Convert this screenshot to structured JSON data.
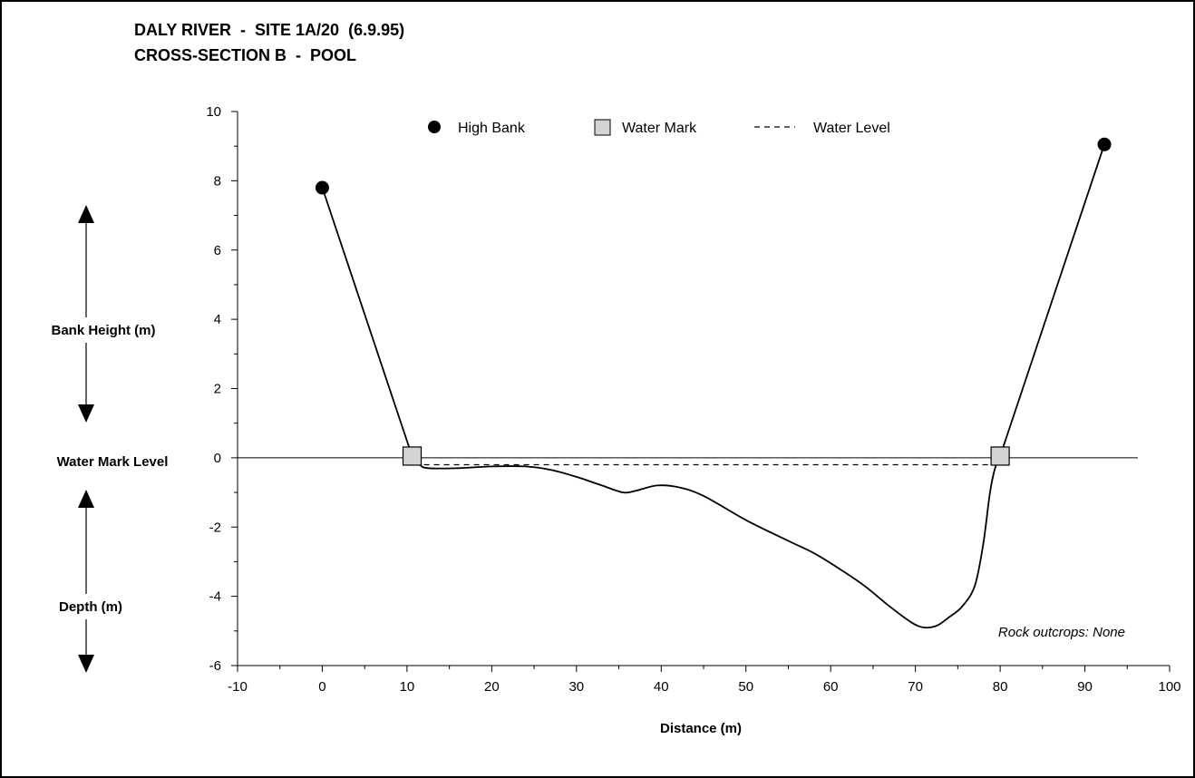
{
  "chart_data": {
    "type": "line",
    "title_line1": "DALY RIVER  -  SITE 1A/20  (6.9.95)",
    "title_line2": "CROSS-SECTION B  -  POOL",
    "xlabel": "Distance (m)",
    "xlim": [
      -10,
      100
    ],
    "ylim": [
      -6,
      10
    ],
    "x_ticks": [
      -10,
      0,
      10,
      20,
      30,
      40,
      50,
      60,
      70,
      80,
      90,
      100
    ],
    "y_ticks": [
      10,
      8,
      6,
      4,
      2,
      0,
      -2,
      -4,
      -6
    ],
    "side_labels": {
      "bank_height": "Bank Height (m)",
      "water_mark_level": "Water Mark Level",
      "depth": "Depth (m)"
    },
    "legend": {
      "high_bank": "High Bank",
      "water_mark": "Water Mark",
      "water_level": "Water Level"
    },
    "annotation": "Rock outcrops: None",
    "colors": {
      "line": "#000000",
      "marker_fill": "#d4d4d4",
      "high_bank_fill": "#000000"
    },
    "series": [
      {
        "name": "High Bank",
        "marker": "circle",
        "points": [
          [
            0,
            7.8
          ],
          [
            92.3,
            9.05
          ]
        ]
      },
      {
        "name": "Water Mark",
        "marker": "square",
        "points": [
          [
            10.6,
            0.05
          ],
          [
            80,
            0.05
          ]
        ]
      },
      {
        "name": "Water Level",
        "style": "dashed",
        "points": [
          [
            12,
            -0.2
          ],
          [
            79,
            -0.2
          ]
        ]
      },
      {
        "name": "profile",
        "style": "solid",
        "points": [
          [
            0,
            7.8
          ],
          [
            10.6,
            0.05
          ],
          [
            11.5,
            -0.2
          ],
          [
            12.5,
            -0.3
          ],
          [
            16,
            -0.3
          ],
          [
            20,
            -0.25
          ],
          [
            24,
            -0.25
          ],
          [
            27,
            -0.35
          ],
          [
            30,
            -0.55
          ],
          [
            33,
            -0.8
          ],
          [
            35.5,
            -1.0
          ],
          [
            37,
            -0.95
          ],
          [
            39.5,
            -0.8
          ],
          [
            42,
            -0.85
          ],
          [
            45,
            -1.1
          ],
          [
            50,
            -1.8
          ],
          [
            55,
            -2.4
          ],
          [
            58,
            -2.75
          ],
          [
            61,
            -3.2
          ],
          [
            64,
            -3.7
          ],
          [
            67,
            -4.3
          ],
          [
            69.5,
            -4.75
          ],
          [
            71,
            -4.9
          ],
          [
            72.5,
            -4.85
          ],
          [
            74,
            -4.6
          ],
          [
            75.5,
            -4.3
          ],
          [
            77,
            -3.7
          ],
          [
            78,
            -2.5
          ],
          [
            78.8,
            -1.0
          ],
          [
            79.4,
            -0.3
          ],
          [
            80,
            0.05
          ],
          [
            92.3,
            9.05
          ]
        ]
      }
    ]
  }
}
